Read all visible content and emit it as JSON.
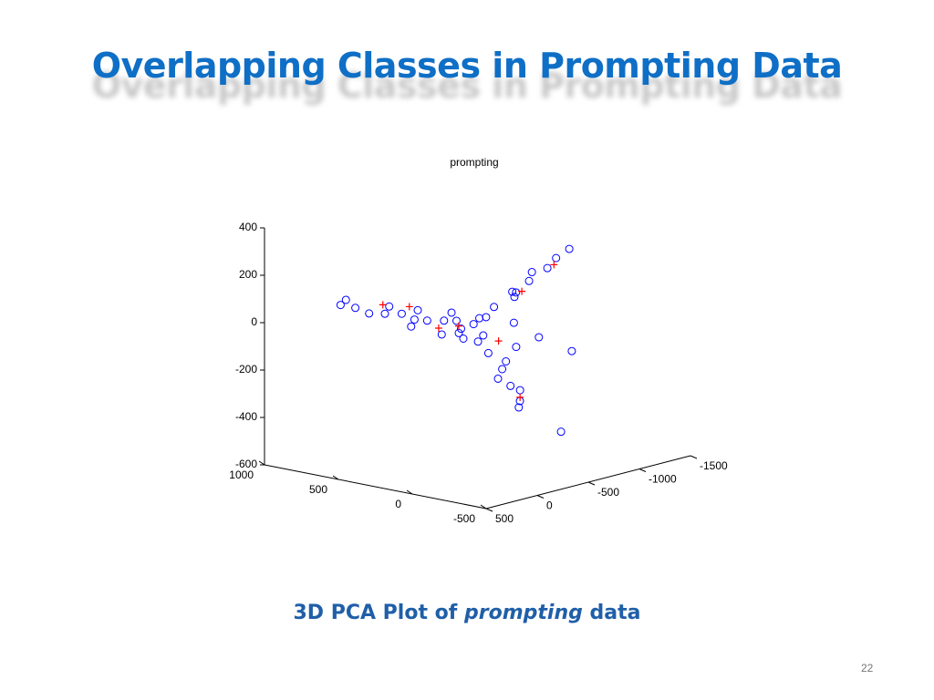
{
  "slide": {
    "title": "Overlapping Classes in Prompting Data",
    "caption": {
      "before": "3D PCA Plot of",
      "emphasis": "prompting",
      "after": "data"
    },
    "page_number": 22
  },
  "chart_data": {
    "type": "scatter3d",
    "title": "prompting",
    "xlim": [
      -500,
      1000
    ],
    "xticks": [
      -500,
      0,
      500,
      1000
    ],
    "ylim": [
      -1500,
      500
    ],
    "yticks": [
      -1500,
      -1000,
      -500,
      0,
      500
    ],
    "zlim": [
      -600,
      400
    ],
    "zticks": [
      -600,
      -400,
      -200,
      0,
      200,
      400
    ],
    "series": [
      {
        "color": "#0000ff",
        "marker": "o",
        "x": [
          0,
          50,
          -50,
          100,
          -100,
          30,
          80,
          -30,
          150,
          0,
          200,
          300,
          400,
          500,
          600,
          700,
          800,
          850,
          350,
          450,
          250,
          550,
          0,
          -20,
          -30,
          -50,
          -40,
          0,
          -80,
          20,
          -60,
          -100,
          -180,
          -250,
          -300,
          -320,
          -200,
          -150,
          -280,
          -150,
          -200,
          -100,
          -350,
          -250,
          900
        ],
        "y": [
          -100,
          -50,
          -150,
          -100,
          -50,
          -200,
          0,
          -100,
          -150,
          0,
          -100,
          -80,
          -100,
          -120,
          -100,
          -90,
          -100,
          -80,
          -60,
          -140,
          -150,
          -70,
          -300,
          -450,
          -600,
          -750,
          -850,
          -500,
          -400,
          -700,
          -950,
          -100,
          -120,
          -100,
          -120,
          -80,
          -50,
          -200,
          -150,
          -300,
          -450,
          -350,
          -450,
          -700,
          -100
        ],
        "z": [
          50,
          30,
          80,
          0,
          20,
          60,
          100,
          -20,
          40,
          0,
          40,
          30,
          20,
          30,
          20,
          10,
          20,
          50,
          70,
          -20,
          -30,
          60,
          100,
          150,
          180,
          220,
          250,
          120,
          160,
          200,
          280,
          -60,
          -120,
          -180,
          -240,
          -260,
          -150,
          -100,
          -200,
          -50,
          -20,
          40,
          -400,
          -100,
          20
        ]
      },
      {
        "color": "#ff0000",
        "marker": "+",
        "x": [
          100,
          400,
          -50,
          -280,
          -100,
          250,
          -60,
          600
        ],
        "y": [
          -100,
          -50,
          -500,
          -150,
          -200,
          -120,
          -800,
          -80
        ],
        "z": [
          30,
          80,
          150,
          -230,
          -20,
          0,
          230,
          60
        ]
      }
    ]
  }
}
